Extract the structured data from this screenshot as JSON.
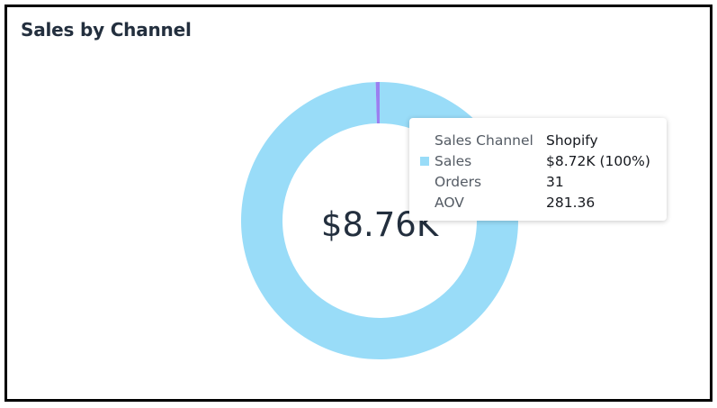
{
  "card": {
    "title": "Sales by Channel"
  },
  "chart_data": {
    "type": "pie",
    "donut": true,
    "center_total_label": "$8.76K",
    "slices": [
      {
        "name": "Shopify",
        "value": 8.72,
        "color": "#99dcf8"
      },
      {
        "name": "",
        "value": 0.04,
        "color": "#9b7ff0"
      }
    ],
    "unit": "$K",
    "legend": "none"
  },
  "tooltip": {
    "rows": [
      {
        "label": "Sales Channel",
        "value": "Shopify",
        "swatch": false
      },
      {
        "label": "Sales",
        "value": "$8.72K (100%)",
        "swatch": true,
        "swatch_color": "#99dcf8"
      },
      {
        "label": "Orders",
        "value": "31",
        "swatch": false
      },
      {
        "label": "AOV",
        "value": "281.36",
        "swatch": false
      }
    ]
  }
}
